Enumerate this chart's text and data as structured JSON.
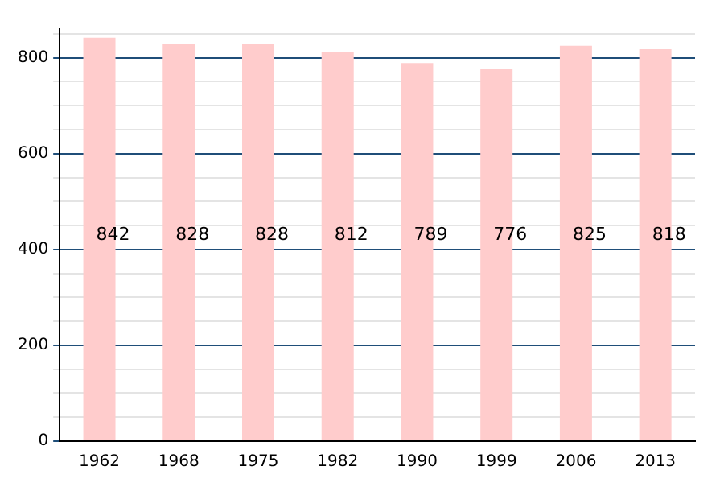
{
  "chart_data": {
    "type": "bar",
    "categories": [
      "1962",
      "1968",
      "1975",
      "1982",
      "1990",
      "1999",
      "2006",
      "2013"
    ],
    "values": [
      842,
      828,
      828,
      812,
      789,
      776,
      825,
      818
    ],
    "color": "#ffcccc",
    "ylim": [
      0,
      860
    ],
    "yticks": [
      0,
      {
        "value": 50,
        "label": null
      },
      {
        "value": 100,
        "label": null
      },
      {
        "value": 150,
        "label": null
      },
      200,
      {
        "value": 250,
        "label": null
      },
      {
        "value": 300,
        "label": null
      },
      {
        "value": 350,
        "label": null
      },
      400,
      {
        "value": 450,
        "label": null
      },
      {
        "value": 500,
        "label": null
      },
      {
        "value": 550,
        "label": null
      },
      600,
      {
        "value": 650,
        "label": null
      },
      {
        "value": 700,
        "label": null
      },
      {
        "value": 750,
        "label": null
      },
      800,
      {
        "value": 850,
        "label": null
      }
    ],
    "grid": "y",
    "data_labels": true,
    "legend": false
  }
}
